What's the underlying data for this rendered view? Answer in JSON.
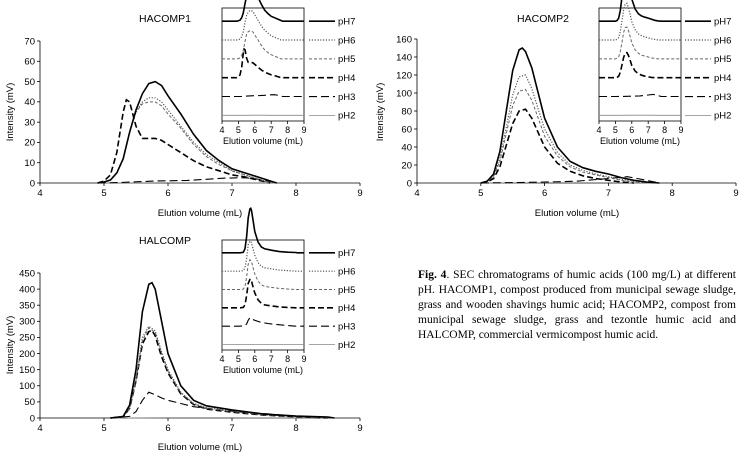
{
  "caption": {
    "label": "Fig. 4",
    "text": ". SEC chromatograms of humic acids (100 mg/L) at different pH. HACOMP1, compost  produced from municipal sewage sludge, grass and wooden shavings humic acid; HACOMP2, compost from municipal sewage sludge, grass and tezontle humic acid and HALCOMP, commercial vermicompost humic acid."
  },
  "chart_data": [
    {
      "type": "line",
      "title": "HACOMP1",
      "xlabel": "Elution volume (mL)",
      "ylabel": "Intensity (mV)",
      "xlim": [
        4,
        9
      ],
      "ylim": [
        0,
        70
      ],
      "xticks": [
        "4",
        "5",
        "6",
        "7",
        "8",
        "9"
      ],
      "yticks": [
        "0",
        "10",
        "20",
        "30",
        "40",
        "50",
        "60",
        "70"
      ],
      "series": [
        {
          "name": "pH7",
          "style": "solid-thick",
          "x": [
            4.9,
            5.0,
            5.1,
            5.2,
            5.3,
            5.4,
            5.5,
            5.6,
            5.7,
            5.8,
            5.9,
            6.0,
            6.2,
            6.4,
            6.6,
            6.8,
            7.0,
            7.2,
            7.4,
            7.6,
            7.7
          ],
          "y": [
            0,
            0.5,
            1.5,
            5,
            12,
            25,
            36,
            44,
            49,
            50,
            48,
            43,
            34,
            24,
            16,
            11,
            7,
            5,
            3,
            1,
            0
          ]
        },
        {
          "name": "pH6",
          "style": "dotted",
          "x": [
            4.9,
            5.0,
            5.1,
            5.2,
            5.3,
            5.4,
            5.5,
            5.6,
            5.7,
            5.8,
            5.9,
            6.0,
            6.2,
            6.4,
            6.6,
            6.8,
            7.0,
            7.2,
            7.4,
            7.6
          ],
          "y": [
            0,
            0.5,
            1.5,
            5,
            12,
            25,
            35,
            40,
            42,
            42,
            40,
            36,
            28,
            20,
            14,
            10,
            6,
            4,
            2,
            0
          ]
        },
        {
          "name": "pH5",
          "style": "short-dash",
          "x": [
            4.9,
            5.0,
            5.1,
            5.2,
            5.3,
            5.4,
            5.5,
            5.6,
            5.7,
            5.8,
            5.9,
            6.0,
            6.2,
            6.4,
            6.6,
            6.8,
            7.0,
            7.2,
            7.4,
            7.6
          ],
          "y": [
            0,
            0.5,
            1.5,
            5,
            12,
            25,
            35,
            39,
            40,
            40,
            38,
            34,
            27,
            19,
            13,
            9,
            6,
            4,
            2,
            0
          ]
        },
        {
          "name": "pH4",
          "style": "long-dash-thick",
          "x": [
            4.9,
            5.0,
            5.1,
            5.2,
            5.3,
            5.35,
            5.4,
            5.5,
            5.6,
            5.7,
            5.8,
            5.9,
            6.0,
            6.2,
            6.4,
            6.6,
            6.8,
            7.0,
            7.2,
            7.4,
            7.6
          ],
          "y": [
            0,
            1,
            4,
            15,
            35,
            41,
            40,
            28,
            22,
            22,
            22,
            21,
            19,
            15,
            11,
            8,
            6,
            4,
            3,
            1.5,
            0
          ]
        },
        {
          "name": "pH3",
          "style": "long-dash",
          "x": [
            4.9,
            5.2,
            5.5,
            5.8,
            6.0,
            6.3,
            6.6,
            6.9,
            7.2,
            7.5,
            7.7
          ],
          "y": [
            0,
            0.2,
            0.6,
            1.0,
            1.1,
            1.3,
            1.8,
            2.4,
            2.6,
            1.5,
            0
          ]
        },
        {
          "name": "pH2",
          "style": "solid-thin",
          "x": [
            4.9,
            5.5,
            6.0,
            6.5,
            7.0,
            7.5,
            7.7
          ],
          "y": [
            0,
            0.1,
            0.2,
            0.2,
            0.1,
            0.1,
            0
          ]
        }
      ]
    },
    {
      "type": "line",
      "title": "HACOMP2",
      "xlabel": "Elution volume (mL)",
      "ylabel": "Intensity (mV)",
      "xlim": [
        4,
        9
      ],
      "ylim": [
        0,
        160
      ],
      "xticks": [
        "4",
        "5",
        "6",
        "7",
        "8",
        "9"
      ],
      "yticks": [
        "0",
        "20",
        "40",
        "60",
        "80",
        "100",
        "120",
        "140",
        "160"
      ],
      "series": [
        {
          "name": "pH7",
          "style": "solid-thick",
          "x": [
            5.0,
            5.1,
            5.2,
            5.3,
            5.4,
            5.5,
            5.6,
            5.65,
            5.7,
            5.8,
            5.9,
            6.0,
            6.2,
            6.4,
            6.6,
            6.8,
            7.0,
            7.2,
            7.4,
            7.6,
            7.8
          ],
          "y": [
            0,
            2,
            10,
            35,
            80,
            125,
            148,
            150,
            146,
            128,
            100,
            72,
            40,
            24,
            17,
            13,
            10,
            6,
            3,
            1,
            0
          ]
        },
        {
          "name": "pH6",
          "style": "dotted",
          "x": [
            5.0,
            5.1,
            5.2,
            5.3,
            5.4,
            5.5,
            5.6,
            5.7,
            5.8,
            5.9,
            6.0,
            6.2,
            6.4,
            6.6,
            6.8,
            7.0,
            7.2,
            7.4,
            7.6
          ],
          "y": [
            0,
            2,
            8,
            28,
            62,
            98,
            118,
            120,
            105,
            82,
            60,
            34,
            20,
            14,
            10,
            7,
            4,
            2,
            0
          ]
        },
        {
          "name": "pH5",
          "style": "short-dash",
          "x": [
            5.0,
            5.1,
            5.2,
            5.3,
            5.4,
            5.5,
            5.6,
            5.7,
            5.8,
            5.9,
            6.0,
            6.2,
            6.4,
            6.6,
            6.8,
            7.0,
            7.2,
            7.4,
            7.6
          ],
          "y": [
            0,
            2,
            7,
            24,
            55,
            86,
            102,
            104,
            92,
            72,
            52,
            30,
            18,
            12,
            9,
            6,
            3,
            1,
            0
          ]
        },
        {
          "name": "pH4",
          "style": "long-dash-thick",
          "x": [
            5.0,
            5.1,
            5.2,
            5.3,
            5.4,
            5.5,
            5.6,
            5.7,
            5.8,
            5.9,
            6.0,
            6.2,
            6.4,
            6.6,
            6.8,
            7.0,
            7.2,
            7.4
          ],
          "y": [
            0,
            1,
            5,
            18,
            42,
            66,
            80,
            82,
            72,
            56,
            40,
            22,
            13,
            8,
            5,
            3,
            1,
            0
          ]
        },
        {
          "name": "pH3",
          "style": "long-dash",
          "x": [
            5.0,
            5.5,
            6.0,
            6.5,
            7.0,
            7.3,
            7.6,
            7.8
          ],
          "y": [
            0,
            0.5,
            1,
            2,
            5,
            7,
            3,
            0
          ]
        },
        {
          "name": "pH2",
          "style": "solid-thin",
          "x": [
            5.0,
            6.0,
            7.0,
            7.8
          ],
          "y": [
            0,
            0.5,
            0.5,
            0
          ]
        }
      ]
    },
    {
      "type": "line",
      "title": "HALCOMP",
      "xlabel": "Elution volume (mL)",
      "ylabel": "Intensity (mV)",
      "xlim": [
        4,
        9
      ],
      "ylim": [
        0,
        450
      ],
      "xticks": [
        "4",
        "5",
        "6",
        "7",
        "8",
        "9"
      ],
      "yticks": [
        "0",
        "50",
        "100",
        "150",
        "200",
        "250",
        "300",
        "350",
        "400",
        "450"
      ],
      "series": [
        {
          "name": "pH7",
          "style": "solid-thick",
          "x": [
            5.1,
            5.3,
            5.4,
            5.5,
            5.6,
            5.7,
            5.75,
            5.8,
            5.9,
            6.0,
            6.2,
            6.4,
            6.6,
            7.0,
            7.5,
            8.0,
            8.5,
            8.6
          ],
          "y": [
            0,
            5,
            40,
            150,
            330,
            415,
            420,
            400,
            300,
            200,
            100,
            55,
            38,
            25,
            12,
            6,
            3,
            0
          ]
        },
        {
          "name": "pH6",
          "style": "dotted",
          "x": [
            5.1,
            5.3,
            5.4,
            5.5,
            5.6,
            5.7,
            5.8,
            5.9,
            6.0,
            6.2,
            6.4,
            6.6,
            7.0,
            7.5,
            8.0,
            8.5
          ],
          "y": [
            0,
            4,
            32,
            120,
            250,
            285,
            270,
            205,
            150,
            80,
            45,
            32,
            22,
            10,
            5,
            0
          ]
        },
        {
          "name": "pH5",
          "style": "short-dash",
          "x": [
            5.1,
            5.3,
            5.4,
            5.5,
            5.6,
            5.7,
            5.8,
            5.9,
            6.0,
            6.2,
            6.4,
            6.6,
            7.0,
            7.5,
            8.0,
            8.5
          ],
          "y": [
            0,
            4,
            30,
            115,
            240,
            280,
            265,
            200,
            145,
            78,
            44,
            30,
            20,
            10,
            5,
            0
          ]
        },
        {
          "name": "pH4",
          "style": "long-dash-thick",
          "x": [
            5.1,
            5.3,
            5.4,
            5.5,
            5.6,
            5.7,
            5.75,
            5.8,
            5.9,
            6.0,
            6.2,
            6.4,
            6.6,
            7.0,
            7.5,
            8.0,
            8.5
          ],
          "y": [
            0,
            4,
            30,
            115,
            230,
            268,
            272,
            255,
            190,
            140,
            75,
            42,
            28,
            18,
            9,
            4,
            0
          ]
        },
        {
          "name": "pH3",
          "style": "long-dash",
          "x": [
            5.1,
            5.4,
            5.5,
            5.6,
            5.7,
            5.8,
            5.9,
            6.0,
            6.2,
            6.4,
            6.8,
            7.2,
            7.6,
            8.0,
            8.5
          ],
          "y": [
            0,
            5,
            20,
            55,
            80,
            72,
            62,
            55,
            45,
            35,
            25,
            18,
            12,
            6,
            0
          ]
        },
        {
          "name": "pH2",
          "style": "solid-thin",
          "x": [
            5.1,
            6.0,
            7.0,
            8.0,
            8.5
          ],
          "y": [
            0,
            1,
            1,
            0.5,
            0
          ]
        }
      ]
    }
  ],
  "insets": {
    "xticks": [
      "4",
      "5",
      "6",
      "7",
      "8",
      "9"
    ],
    "xlim": [
      4,
      9
    ],
    "xlabel": "Elution volume (mL)",
    "legend": [
      "pH7",
      "pH6",
      "pH5",
      "pH4",
      "pH3",
      "pH2"
    ]
  }
}
